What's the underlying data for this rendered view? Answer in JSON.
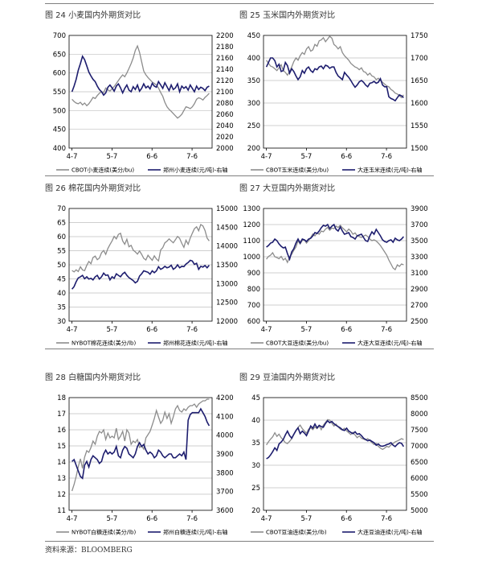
{
  "source": "资料来源：BLOOMBERG",
  "colors": {
    "cbot": "#8c8c8c",
    "local": "#1d1d6e"
  },
  "chart_data": [
    {
      "type": "line",
      "title": "图 24 小麦国内外期货对比",
      "x_ticks": [
        "4-7",
        "5-7",
        "6-6",
        "7-6"
      ],
      "ylim": [
        400,
        700
      ],
      "y_ticks": [
        "700",
        "650",
        "600",
        "550",
        "500",
        "450",
        "400"
      ],
      "y2lim": [
        2000,
        2200
      ],
      "y2_ticks": [
        "2200",
        "2180",
        "2160",
        "2140",
        "2120",
        "2100",
        "2080",
        "2060",
        "2040",
        "2020",
        "2000"
      ],
      "x_count": 66,
      "series": [
        {
          "name": "CBOT小麦连续(美分/bu)",
          "axis": "left",
          "color": "#8c8c8c",
          "values": [
            530,
            524,
            520,
            518,
            522,
            515,
            520,
            513,
            518,
            526,
            535,
            532,
            540,
            546,
            550,
            548,
            560,
            555,
            552,
            558,
            564,
            572,
            580,
            588,
            595,
            590,
            600,
            612,
            625,
            640,
            660,
            672,
            655,
            630,
            605,
            595,
            588,
            582,
            576,
            572,
            568,
            560,
            548,
            538,
            522,
            510,
            503,
            498,
            492,
            486,
            480,
            484,
            490,
            500,
            510,
            508,
            505,
            510,
            518,
            530,
            534,
            532,
            528,
            535,
            540,
            546
          ]
        },
        {
          "name": "郑州小麦连续(元/吨)-右轴",
          "axis": "right",
          "color": "#1d1d6e",
          "values": [
            2100,
            2110,
            2122,
            2138,
            2150,
            2163,
            2157,
            2146,
            2135,
            2128,
            2122,
            2118,
            2110,
            2104,
            2100,
            2094,
            2098,
            2108,
            2112,
            2107,
            2101,
            2110,
            2114,
            2107,
            2098,
            2106,
            2112,
            2103,
            2100,
            2109,
            2104,
            2112,
            2101,
            2106,
            2114,
            2107,
            2110,
            2105,
            2115,
            2110,
            2108,
            2118,
            2112,
            2106,
            2116,
            2109,
            2102,
            2112,
            2104,
            2107,
            2114,
            2100,
            2110,
            2106,
            2109,
            2103,
            2112,
            2106,
            2100,
            2110,
            2104,
            2108,
            2106,
            2102,
            2108,
            2110
          ]
        }
      ]
    },
    {
      "type": "line",
      "title": "图 25 玉米国内外期货对比",
      "x_ticks": [
        "4-7",
        "5-7",
        "6-6",
        "7-6"
      ],
      "ylim": [
        200,
        450
      ],
      "y_ticks": [
        "450",
        "400",
        "350",
        "300",
        "250",
        "200"
      ],
      "y2lim": [
        1500,
        1750
      ],
      "y2_ticks": [
        "1750",
        "1700",
        "1650",
        "1600",
        "1550",
        "1500"
      ],
      "x_count": 66,
      "series": [
        {
          "name": "CBOT玉米连续(美分/bu)",
          "axis": "left",
          "color": "#8c8c8c",
          "values": [
            395,
            388,
            382,
            380,
            376,
            372,
            378,
            385,
            372,
            368,
            362,
            370,
            380,
            392,
            400,
            395,
            405,
            412,
            408,
            420,
            425,
            415,
            418,
            430,
            426,
            438,
            440,
            445,
            436,
            442,
            448,
            444,
            430,
            426,
            420,
            425,
            412,
            405,
            400,
            395,
            388,
            384,
            380,
            378,
            374,
            378,
            370,
            368,
            362,
            366,
            360,
            358,
            352,
            355,
            350,
            346,
            342,
            338,
            336,
            330,
            327,
            322,
            320,
            316,
            312,
            318
          ]
        },
        {
          "name": "大连玉米连续(元/吨)-右轴",
          "axis": "right",
          "color": "#1d1d6e",
          "values": [
            1680,
            1690,
            1700,
            1700,
            1694,
            1680,
            1686,
            1670,
            1672,
            1690,
            1683,
            1666,
            1676,
            1670,
            1660,
            1652,
            1658,
            1672,
            1666,
            1676,
            1680,
            1672,
            1668,
            1676,
            1674,
            1680,
            1682,
            1676,
            1684,
            1682,
            1677,
            1680,
            1680,
            1668,
            1660,
            1656,
            1652,
            1668,
            1662,
            1657,
            1650,
            1642,
            1635,
            1640,
            1647,
            1650,
            1646,
            1640,
            1636,
            1644,
            1645,
            1648,
            1644,
            1646,
            1654,
            1640,
            1636,
            1636,
            1614,
            1610,
            1608,
            1605,
            1612,
            1618,
            1616,
            1612
          ]
        }
      ]
    },
    {
      "type": "line",
      "title": "图 26 棉花国内外期货对比",
      "x_ticks": [
        "4-7",
        "5-7",
        "6-6",
        "7-6"
      ],
      "ylim": [
        30,
        70
      ],
      "y_ticks": [
        "70",
        "65",
        "60",
        "55",
        "50",
        "45",
        "40",
        "35",
        "30"
      ],
      "y2lim": [
        12000,
        15000
      ],
      "y2_ticks": [
        "15000",
        "14500",
        "14000",
        "13500",
        "13000",
        "12500",
        "12000"
      ],
      "x_count": 66,
      "series": [
        {
          "name": "NYBOT棉花连续(美分/lb)",
          "axis": "left",
          "color": "#8c8c8c",
          "values": [
            48,
            47.5,
            48.2,
            47.6,
            49.3,
            48.2,
            47.9,
            49.8,
            51.2,
            50.4,
            52.6,
            53.1,
            51.8,
            52.4,
            54.3,
            55.1,
            53.7,
            55.8,
            57.2,
            58.5,
            60.1,
            59.2,
            60.8,
            61.2,
            58.5,
            57.3,
            59.1,
            56.4,
            56.9,
            55.2,
            54.6,
            53.8,
            54.9,
            53.7,
            52.3,
            51.7,
            53.4,
            52.5,
            51.6,
            53.2,
            52.1,
            51.4,
            55.3,
            56.1,
            57.8,
            58.4,
            59.2,
            58.5,
            57.8,
            58.9,
            60.1,
            59.4,
            57.6,
            56.2,
            58.7,
            57.3,
            59.5,
            61.2,
            62.8,
            63.5,
            62.1,
            64.3,
            63.8,
            62.2,
            59.5,
            58.5
          ]
        },
        {
          "name": "郑州棉花连续(元/吨)-右轴",
          "axis": "right",
          "color": "#1d1d6e",
          "values": [
            12850,
            12920,
            13050,
            13150,
            13180,
            13220,
            13130,
            13180,
            13120,
            13140,
            13100,
            13180,
            13220,
            13120,
            13180,
            13280,
            13220,
            13230,
            13100,
            13180,
            13140,
            13260,
            13220,
            13180,
            13260,
            13300,
            13220,
            13160,
            13120,
            13080,
            13020,
            13060,
            13200,
            13260,
            13340,
            13320,
            13300,
            13250,
            13340,
            13290,
            13340,
            13450,
            13380,
            13410,
            13460,
            13420,
            13440,
            13490,
            13380,
            13420,
            13500,
            13420,
            13460,
            13450,
            13520,
            13560,
            13620,
            13600,
            13510,
            13540,
            13380,
            13460,
            13440,
            13480,
            13420,
            13490
          ]
        }
      ]
    },
    {
      "type": "line",
      "title": "图 27 大豆国内外期货对比",
      "x_ticks": [
        "4-7",
        "5-7",
        "6-6",
        "7-6"
      ],
      "ylim": [
        600,
        1300
      ],
      "y_ticks": [
        "1300",
        "1200",
        "1100",
        "1000",
        "900",
        "800",
        "700",
        "600"
      ],
      "y2lim": [
        2500,
        3900
      ],
      "y2_ticks": [
        "3900",
        "3700",
        "3500",
        "3300",
        "3100",
        "2900",
        "2700",
        "2500"
      ],
      "x_count": 66,
      "series": [
        {
          "name": "CBOT大豆连续(美分/bu)",
          "axis": "left",
          "color": "#8c8c8c",
          "values": [
            985,
            1002,
            1010,
            1025,
            1000,
            995,
            988,
            1002,
            980,
            990,
            965,
            1000,
            1015,
            1040,
            1060,
            1100,
            1080,
            1102,
            1105,
            1085,
            1100,
            1120,
            1142,
            1130,
            1148,
            1140,
            1160,
            1155,
            1172,
            1182,
            1165,
            1178,
            1175,
            1190,
            1182,
            1195,
            1180,
            1168,
            1155,
            1172,
            1160,
            1140,
            1148,
            1130,
            1125,
            1120,
            1128,
            1135,
            1126,
            1110,
            1100,
            1105,
            1098,
            1085,
            1070,
            1050,
            1030,
            1010,
            980,
            955,
            930,
            920,
            950,
            940,
            955,
            950
          ]
        },
        {
          "name": "大连大豆连续(元/吨)-右轴",
          "axis": "right",
          "color": "#1d1d6e",
          "values": [
            3420,
            3440,
            3470,
            3480,
            3520,
            3500,
            3460,
            3430,
            3410,
            3420,
            3340,
            3270,
            3360,
            3400,
            3470,
            3520,
            3470,
            3520,
            3510,
            3490,
            3520,
            3530,
            3560,
            3600,
            3590,
            3620,
            3660,
            3690,
            3680,
            3700,
            3650,
            3680,
            3700,
            3640,
            3620,
            3670,
            3620,
            3580,
            3590,
            3600,
            3550,
            3540,
            3520,
            3560,
            3570,
            3580,
            3540,
            3500,
            3490,
            3560,
            3610,
            3580,
            3640,
            3600,
            3560,
            3510,
            3490,
            3480,
            3500,
            3510,
            3480,
            3530,
            3510,
            3500,
            3520,
            3550
          ]
        }
      ]
    },
    {
      "type": "line",
      "title": "图 28 白糖国内外期货对比",
      "x_ticks": [
        "4-7",
        "5-7",
        "6-6",
        "7-6"
      ],
      "ylim": [
        11,
        18
      ],
      "y_ticks": [
        "18",
        "17",
        "16",
        "15",
        "14",
        "13",
        "12",
        "11"
      ],
      "y2lim": [
        3600,
        4200
      ],
      "y2_ticks": [
        "4200",
        "4100",
        "4000",
        "3900",
        "3800",
        "3700",
        "3600"
      ],
      "x_count": 66,
      "series": [
        {
          "name": "NYBOT白糖连续(美分/lb)",
          "axis": "left",
          "color": "#8c8c8c",
          "values": [
            12.2,
            12.6,
            13.1,
            13.7,
            14.2,
            13.6,
            14.3,
            14.7,
            14.6,
            14.9,
            15.3,
            15.1,
            15.6,
            15.9,
            15.8,
            16.0,
            15.4,
            15.8,
            15.5,
            15.6,
            15.5,
            16.1,
            15.4,
            15.6,
            15.9,
            15.3,
            16.0,
            15.8,
            15.1,
            15.3,
            15.2,
            15.4,
            14.9,
            15.0,
            14.8,
            15.5,
            15.7,
            15.9,
            16.3,
            16.7,
            17.2,
            16.8,
            16.4,
            16.6,
            17.1,
            16.7,
            17.0,
            16.4,
            16.8,
            17.3,
            17.5,
            17.2,
            17.1,
            17.3,
            17.2,
            17.4,
            17.5,
            17.5,
            17.6,
            17.4,
            17.6,
            17.7,
            17.8,
            17.8,
            17.9,
            17.9
          ]
        },
        {
          "name": "郑州白糖连续(元/吨)-右轴",
          "axis": "right",
          "color": "#1d1d6e",
          "values": [
            3860,
            3870,
            3840,
            3810,
            3780,
            3770,
            3840,
            3860,
            3830,
            3870,
            3890,
            3880,
            3870,
            3850,
            3860,
            3900,
            3920,
            3900,
            3910,
            3900,
            3910,
            3940,
            3890,
            3880,
            3920,
            3940,
            3930,
            3900,
            3890,
            3880,
            3900,
            3940,
            3960,
            3940,
            3950,
            3920,
            3900,
            3910,
            3900,
            3880,
            3890,
            3920,
            3910,
            3890,
            3880,
            3890,
            3900,
            3900,
            3880,
            3880,
            3890,
            3900,
            3890,
            3910,
            3870,
            4080,
            4110,
            4120,
            4120,
            4120,
            4120,
            4140,
            4120,
            4100,
            4070,
            4050
          ]
        }
      ]
    },
    {
      "type": "line",
      "title": "图 29 豆油国内外期货对比",
      "x_ticks": [
        "4-7",
        "5-7",
        "6-6",
        "7-6"
      ],
      "ylim": [
        20,
        45
      ],
      "y_ticks": [
        "45",
        "40",
        "35",
        "30",
        "25",
        "20"
      ],
      "y2lim": [
        5000,
        8500
      ],
      "y2_ticks": [
        "8500",
        "8000",
        "7500",
        "7000",
        "6500",
        "6000",
        "5500",
        "5000"
      ],
      "x_count": 66,
      "series": [
        {
          "name": "CBOT豆油连续(美分/lb)",
          "axis": "left",
          "color": "#8c8c8c",
          "values": [
            34.5,
            35.2,
            35.8,
            36.3,
            37.2,
            36.4,
            36.9,
            36.1,
            35.6,
            35.0,
            34.8,
            35.3,
            35.9,
            36.8,
            37.6,
            38.4,
            38.9,
            38.1,
            37.6,
            37.1,
            38.0,
            38.3,
            37.9,
            38.5,
            38.1,
            38.7,
            37.9,
            38.9,
            39.5,
            40.1,
            40.0,
            39.3,
            38.7,
            39.1,
            38.5,
            38.0,
            37.8,
            38.2,
            37.6,
            37.2,
            36.8,
            37.3,
            36.7,
            36.1,
            36.5,
            36.0,
            35.8,
            35.6,
            35.9,
            35.5,
            35.0,
            34.6,
            34.8,
            34.2,
            33.8,
            33.5,
            33.8,
            34.2,
            34.0,
            34.5,
            34.8,
            35.2,
            35.4,
            35.6,
            35.9,
            35.7
          ]
        },
        {
          "name": "大连豆油连续(元/吨)-右轴",
          "axis": "right",
          "color": "#1d1d6e",
          "values": [
            6600,
            6640,
            6720,
            6820,
            6940,
            6860,
            7060,
            7120,
            7200,
            7340,
            7460,
            7320,
            7240,
            7360,
            7480,
            7560,
            7380,
            7460,
            7400,
            7320,
            7460,
            7620,
            7550,
            7680,
            7560,
            7640,
            7600,
            7580,
            7700,
            7780,
            7720,
            7760,
            7690,
            7640,
            7600,
            7560,
            7500,
            7480,
            7550,
            7460,
            7420,
            7380,
            7440,
            7360,
            7380,
            7320,
            7240,
            7200,
            7160,
            7180,
            7140,
            7100,
            7020,
            7060,
            7000,
            6990,
            7010,
            7040,
            7060,
            7100,
            7020,
            6980,
            7050,
            7100,
            7080,
            6980
          ]
        }
      ]
    }
  ]
}
